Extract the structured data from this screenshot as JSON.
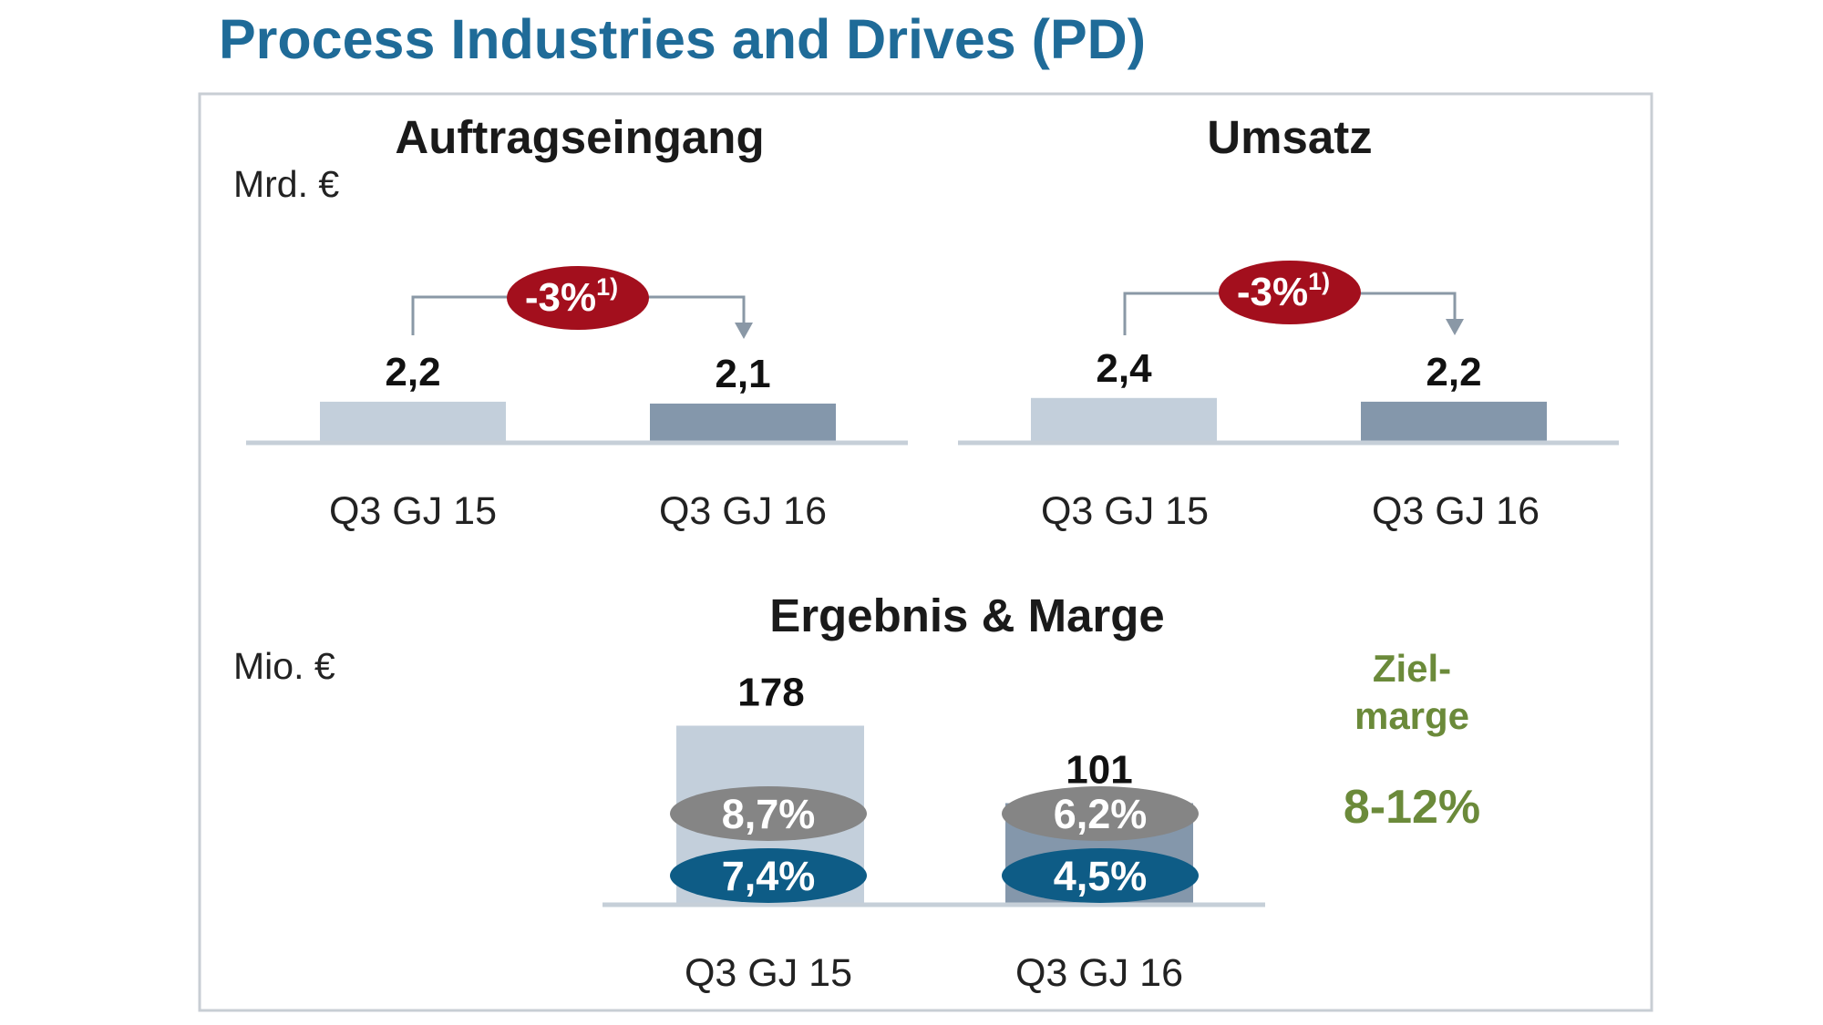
{
  "title": "Process Industries and Drives (PD)",
  "colors": {
    "title": "#1f6b98",
    "bar_previous": "#c3cfdb",
    "bar_current": "#8497ab",
    "baseline": "#c6cfd8",
    "change_badge": "#a30f1d",
    "connector": "#8a98a6",
    "margin_badge_upper": "#858585",
    "margin_badge_lower": "#0e5c86",
    "target": "#6b8a3a",
    "frame": "#c8ced4"
  },
  "chart_data": [
    {
      "type": "bar",
      "title": "Auftragseingang",
      "unit": "Mrd. €",
      "categories": [
        "Q3 GJ 15",
        "Q3 GJ 16"
      ],
      "values": [
        2.2,
        2.1
      ],
      "value_labels": [
        "2,2",
        "2,1"
      ],
      "change": {
        "text": "-3%",
        "footnote": "1)"
      }
    },
    {
      "type": "bar",
      "title": "Umsatz",
      "categories": [
        "Q3 GJ 15",
        "Q3 GJ 16"
      ],
      "values": [
        2.4,
        2.2
      ],
      "value_labels": [
        "2,4",
        "2,2"
      ],
      "change": {
        "text": "-3%",
        "footnote": "1)"
      }
    },
    {
      "type": "bar",
      "title": "Ergebnis & Marge",
      "unit": "Mio. €",
      "categories": [
        "Q3 GJ 15",
        "Q3 GJ 16"
      ],
      "values": [
        178,
        101
      ],
      "value_labels": [
        "178",
        "101"
      ],
      "margins_upper": [
        "8,7%",
        "6,2%"
      ],
      "margins_lower": [
        "7,4%",
        "4,5%"
      ],
      "target": {
        "label_line1": "Ziel-",
        "label_line2": "marge",
        "value": "8-12%"
      }
    }
  ]
}
